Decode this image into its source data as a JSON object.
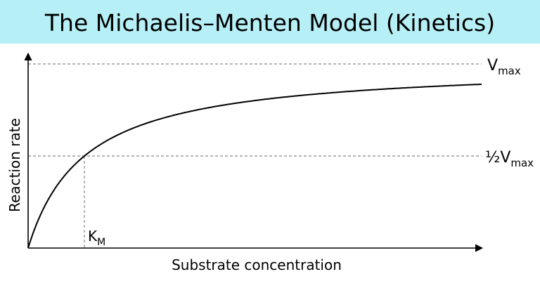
{
  "header": {
    "title": "The Michaelis–Menten Model (Kinetics)"
  },
  "axes": {
    "x_label": "Substrate concentration",
    "y_label": "Reaction rate"
  },
  "labels": {
    "vmax": {
      "main": "V",
      "sub": "max"
    },
    "half_vmax": {
      "main": "½V",
      "sub": "max"
    },
    "km": {
      "main": "K",
      "sub": "M"
    }
  }
}
